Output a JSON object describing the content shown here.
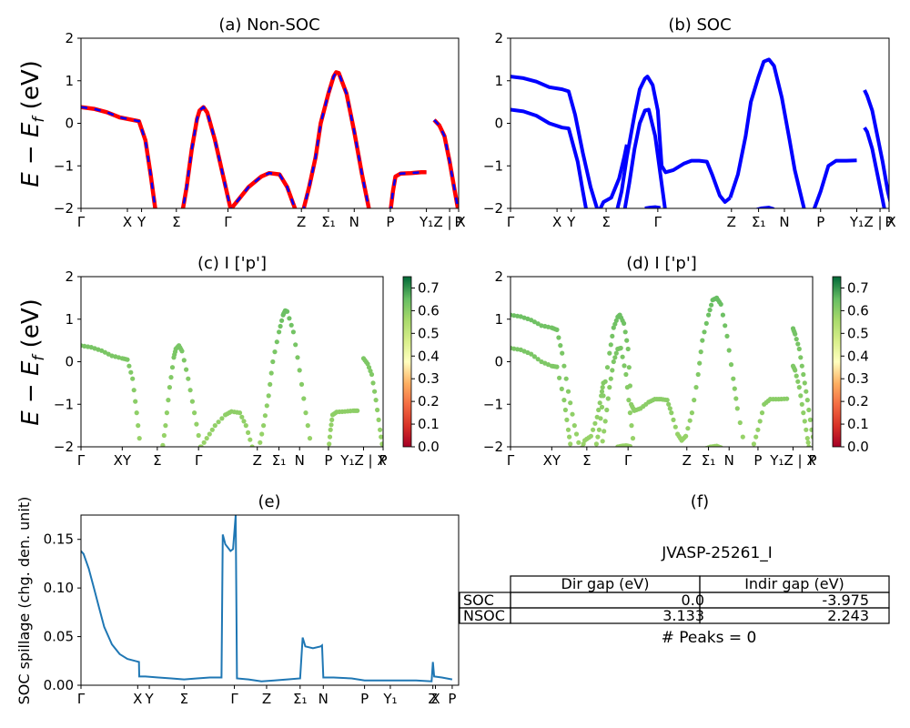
{
  "figure_id": "JVASP-25261_I",
  "peaks_label": "# Peaks = 0",
  "chart_data": [
    {
      "panel": "a",
      "type": "line",
      "title": "(a) Non-SOC",
      "ylabel": "E − E_f (eV)",
      "ylim": [
        -2,
        2
      ],
      "yticks": [
        "2",
        "1",
        "0",
        "−1",
        "−2"
      ],
      "xticks": [
        "Γ",
        "X",
        "Y",
        "Σ",
        "Γ",
        "Z",
        "Σ₁",
        "N",
        "P",
        "Y₁",
        "Z | X",
        "P"
      ],
      "colors": {
        "up": "#0000ff",
        "down": "#ff0000"
      },
      "bands": [
        [
          [
            0,
            0.38
          ],
          [
            0.05,
            0.34
          ],
          [
            0.1,
            0.26
          ],
          [
            0.15,
            0.14
          ],
          [
            0.2,
            0.08
          ],
          [
            0.225,
            0.05
          ],
          [
            0.25,
            -0.4
          ],
          [
            0.27,
            -1.2
          ],
          [
            0.29,
            -2.1
          ]
        ],
        [
          [
            0.39,
            -2.2
          ],
          [
            0.41,
            -1.5
          ],
          [
            0.43,
            -0.6
          ],
          [
            0.45,
            0.1
          ],
          [
            0.46,
            0.3
          ],
          [
            0.475,
            0.38
          ],
          [
            0.49,
            0.25
          ],
          [
            0.52,
            -0.4
          ],
          [
            0.55,
            -1.2
          ],
          [
            0.58,
            -2.0
          ],
          [
            0.585,
            -2.1
          ]
        ],
        [
          [
            0.57,
            -2.1
          ],
          [
            0.61,
            -1.8
          ],
          [
            0.65,
            -1.5
          ],
          [
            0.7,
            -1.25
          ],
          [
            0.73,
            -1.17
          ],
          [
            0.77,
            -1.2
          ],
          [
            0.8,
            -1.5
          ],
          [
            0.83,
            -2.0
          ],
          [
            0.835,
            -2.1
          ]
        ],
        [
          [
            0.86,
            -2.1
          ],
          [
            0.885,
            -1.5
          ],
          [
            0.91,
            -0.8
          ],
          [
            0.93,
            0.0
          ],
          [
            0.96,
            0.7
          ],
          [
            0.98,
            1.1
          ],
          [
            0.99,
            1.2
          ],
          [
            1.0,
            1.18
          ],
          [
            1.03,
            0.7
          ],
          [
            1.06,
            -0.2
          ],
          [
            1.09,
            -1.2
          ],
          [
            1.12,
            -2.1
          ]
        ],
        [
          [
            1.2,
            -2.1
          ],
          [
            1.21,
            -1.6
          ],
          [
            1.22,
            -1.25
          ],
          [
            1.24,
            -1.18
          ],
          [
            1.28,
            -1.17
          ],
          [
            1.32,
            -1.15
          ],
          [
            1.34,
            -1.15
          ]
        ],
        [
          [
            1.37,
            0.08
          ],
          [
            1.39,
            -0.05
          ],
          [
            1.41,
            -0.3
          ],
          [
            1.43,
            -0.9
          ],
          [
            1.45,
            -1.6
          ],
          [
            1.465,
            -2.1
          ]
        ]
      ]
    },
    {
      "panel": "b",
      "type": "line",
      "title": "(b) SOC",
      "ylim": [
        -2,
        2
      ],
      "yticks": [
        "2",
        "1",
        "0",
        "−1",
        "−2"
      ],
      "xticks": [
        "Γ",
        "X",
        "Y",
        "Σ",
        "Γ",
        "Z",
        "Σ₁",
        "N",
        "P",
        "Y₁",
        "Z | X",
        "P"
      ],
      "colors": {
        "band": "#0000ff"
      },
      "bands": [
        [
          [
            0,
            1.1
          ],
          [
            0.05,
            1.06
          ],
          [
            0.1,
            0.98
          ],
          [
            0.15,
            0.85
          ],
          [
            0.2,
            0.8
          ],
          [
            0.225,
            0.75
          ],
          [
            0.25,
            0.2
          ],
          [
            0.28,
            -0.7
          ],
          [
            0.31,
            -1.5
          ],
          [
            0.34,
            -2.1
          ]
        ],
        [
          [
            0,
            0.32
          ],
          [
            0.05,
            0.28
          ],
          [
            0.1,
            0.18
          ],
          [
            0.15,
            0.0
          ],
          [
            0.2,
            -0.1
          ],
          [
            0.225,
            -0.12
          ],
          [
            0.26,
            -0.9
          ],
          [
            0.28,
            -1.6
          ],
          [
            0.295,
            -2.1
          ]
        ],
        [
          [
            0.34,
            -2.1
          ],
          [
            0.36,
            -1.85
          ],
          [
            0.39,
            -1.75
          ],
          [
            0.42,
            -1.3
          ],
          [
            0.44,
            -0.8
          ],
          [
            0.45,
            -0.5
          ]
        ],
        [
          [
            0.41,
            -2.1
          ],
          [
            0.43,
            -1.6
          ],
          [
            0.45,
            -0.8
          ],
          [
            0.48,
            0.2
          ],
          [
            0.5,
            0.8
          ],
          [
            0.52,
            1.05
          ],
          [
            0.53,
            1.1
          ],
          [
            0.55,
            0.9
          ],
          [
            0.57,
            0.3
          ],
          [
            0.585,
            -1.0
          ],
          [
            0.6,
            -1.15
          ],
          [
            0.63,
            -1.1
          ],
          [
            0.67,
            -0.95
          ],
          [
            0.7,
            -0.88
          ],
          [
            0.73,
            -0.88
          ],
          [
            0.76,
            -0.9
          ],
          [
            0.78,
            -1.2
          ],
          [
            0.81,
            -1.7
          ],
          [
            0.83,
            -1.85
          ],
          [
            0.85,
            -1.75
          ]
        ],
        [
          [
            0.44,
            -2.1
          ],
          [
            0.46,
            -1.4
          ],
          [
            0.48,
            -0.6
          ],
          [
            0.5,
            0.0
          ],
          [
            0.52,
            0.3
          ],
          [
            0.535,
            0.32
          ],
          [
            0.56,
            -0.3
          ],
          [
            0.58,
            -1.2
          ],
          [
            0.6,
            -2.1
          ]
        ],
        [
          [
            0.52,
            -2.0
          ],
          [
            0.54,
            -1.98
          ],
          [
            0.56,
            -1.97
          ],
          [
            0.58,
            -1.99
          ]
        ],
        [
          [
            0.85,
            -1.75
          ],
          [
            0.88,
            -1.2
          ],
          [
            0.91,
            -0.3
          ],
          [
            0.93,
            0.5
          ],
          [
            0.96,
            1.1
          ],
          [
            0.98,
            1.45
          ],
          [
            1.0,
            1.5
          ],
          [
            1.02,
            1.35
          ],
          [
            1.05,
            0.6
          ],
          [
            1.08,
            -0.4
          ],
          [
            1.1,
            -1.1
          ],
          [
            1.14,
            -2.1
          ]
        ],
        [
          [
            0.94,
            -2.05
          ],
          [
            0.97,
            -2.0
          ],
          [
            1.0,
            -1.98
          ],
          [
            1.02,
            -2.02
          ]
        ],
        [
          [
            1.17,
            -2.1
          ],
          [
            1.2,
            -1.6
          ],
          [
            1.23,
            -1.0
          ],
          [
            1.26,
            -0.88
          ],
          [
            1.3,
            -0.88
          ],
          [
            1.34,
            -0.87
          ]
        ],
        [
          [
            1.37,
            0.78
          ],
          [
            1.38,
            0.65
          ],
          [
            1.4,
            0.3
          ],
          [
            1.42,
            -0.3
          ],
          [
            1.44,
            -0.9
          ],
          [
            1.46,
            -1.6
          ],
          [
            1.48,
            -2.1
          ]
        ],
        [
          [
            1.37,
            -0.1
          ],
          [
            1.38,
            -0.2
          ],
          [
            1.4,
            -0.6
          ],
          [
            1.42,
            -1.2
          ],
          [
            1.44,
            -1.8
          ],
          [
            1.45,
            -2.1
          ]
        ]
      ]
    },
    {
      "panel": "c",
      "type": "scatter",
      "title": "(c)  I ['p']",
      "ylabel": "E − E_f (eV)",
      "ylim": [
        -2,
        2
      ],
      "yticks": [
        "2",
        "1",
        "0",
        "−1",
        "−2"
      ],
      "xticks": [
        "Γ",
        "XY",
        "Σ",
        "Γ",
        "Z",
        "Σ₁",
        "N",
        "P",
        "Y₁Z | X",
        "P"
      ],
      "colorbar": {
        "ticks": [
          "0.0",
          "0.1",
          "0.2",
          "0.3",
          "0.4",
          "0.5",
          "0.6",
          "0.7"
        ],
        "range": [
          0,
          0.75
        ]
      }
    },
    {
      "panel": "d",
      "type": "scatter",
      "title": "(d) I ['p']",
      "ylim": [
        -2,
        2
      ],
      "yticks": [
        "2",
        "1",
        "0",
        "−1",
        "−2"
      ],
      "xticks": [
        "Γ",
        "XY",
        "Σ",
        "Γ",
        "Z",
        "Σ₁",
        "N",
        "P",
        "Y₁Z | X",
        "P"
      ],
      "colorbar": {
        "ticks": [
          "0.0",
          "0.1",
          "0.2",
          "0.3",
          "0.4",
          "0.5",
          "0.6",
          "0.7"
        ],
        "range": [
          0,
          0.75
        ]
      }
    },
    {
      "panel": "e",
      "type": "line",
      "title": "(e)",
      "ylabel": "SOC spillage (chg. den. unit)",
      "ylim": [
        0,
        0.175
      ],
      "yticks": [
        "0.15",
        "0.10",
        "0.05",
        "0.00"
      ],
      "xticks": [
        "Γ",
        "X",
        "Y",
        "Σ",
        "Γ",
        "Z",
        "Σ₁",
        "N",
        "P",
        "Y₁",
        "Z",
        "X",
        "P"
      ],
      "colors": {
        "line": "#1f77b4"
      },
      "points": [
        [
          0,
          0.138
        ],
        [
          0.01,
          0.135
        ],
        [
          0.03,
          0.12
        ],
        [
          0.05,
          0.1
        ],
        [
          0.07,
          0.08
        ],
        [
          0.09,
          0.06
        ],
        [
          0.12,
          0.042
        ],
        [
          0.15,
          0.032
        ],
        [
          0.18,
          0.027
        ],
        [
          0.21,
          0.025
        ],
        [
          0.225,
          0.024
        ],
        [
          0.226,
          0.009
        ],
        [
          0.25,
          0.009
        ],
        [
          0.3,
          0.008
        ],
        [
          0.35,
          0.007
        ],
        [
          0.4,
          0.006
        ],
        [
          0.45,
          0.007
        ],
        [
          0.5,
          0.008
        ],
        [
          0.545,
          0.008
        ],
        [
          0.55,
          0.155
        ],
        [
          0.56,
          0.145
        ],
        [
          0.58,
          0.138
        ],
        [
          0.59,
          0.14
        ],
        [
          0.6,
          0.175
        ],
        [
          0.605,
          0.007
        ],
        [
          0.65,
          0.006
        ],
        [
          0.7,
          0.004
        ],
        [
          0.75,
          0.005
        ],
        [
          0.8,
          0.006
        ],
        [
          0.85,
          0.007
        ],
        [
          0.86,
          0.049
        ],
        [
          0.87,
          0.04
        ],
        [
          0.9,
          0.038
        ],
        [
          0.93,
          0.04
        ],
        [
          0.935,
          0.041
        ],
        [
          0.94,
          0.008
        ],
        [
          0.98,
          0.008
        ],
        [
          1.05,
          0.007
        ],
        [
          1.1,
          0.005
        ],
        [
          1.2,
          0.005
        ],
        [
          1.3,
          0.005
        ],
        [
          1.36,
          0.004
        ],
        [
          1.365,
          0.024
        ],
        [
          1.37,
          0.009
        ],
        [
          1.4,
          0.008
        ],
        [
          1.44,
          0.006
        ]
      ]
    }
  ],
  "table": {
    "title": "(f)",
    "caption": "JVASP-25261_I",
    "headers": [
      "Dir gap (eV)",
      "Indir gap (eV)"
    ],
    "rows": [
      {
        "label": "SOC",
        "dir": "0.0",
        "indir": "-3.975"
      },
      {
        "label": "NSOC",
        "dir": "3.133",
        "indir": "2.243"
      }
    ]
  }
}
